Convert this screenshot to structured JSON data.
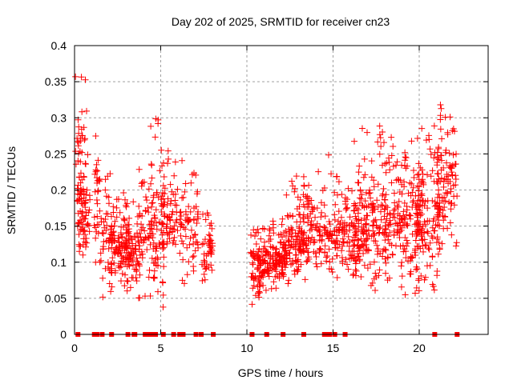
{
  "chart_data": {
    "type": "scatter",
    "title": "Day 202 of 2025, SRMTID for receiver cn23",
    "xlabel": "GPS time / hours",
    "ylabel": "SRMTID / TECUs",
    "xlim": [
      0,
      24
    ],
    "ylim": [
      0,
      0.4
    ],
    "xticks": [
      0,
      5,
      10,
      15,
      20
    ],
    "xtick_labels": [
      "0",
      "5",
      "10",
      "15",
      "20"
    ],
    "yticks": [
      0,
      0.05,
      0.1,
      0.15,
      0.2,
      0.25,
      0.3,
      0.35,
      0.4
    ],
    "ytick_labels": [
      "0",
      "0.05",
      "0.1",
      "0.15",
      "0.2",
      "0.25",
      "0.3",
      "0.35",
      "0.4"
    ],
    "grid": true,
    "legend": "none",
    "marker": "plus",
    "color": "#ff0000",
    "zero_points_x": [
      0.2,
      1.15,
      1.3,
      1.6,
      2.15,
      3.1,
      3.45,
      3.5,
      4.1,
      4.25,
      4.5,
      4.7,
      5.15,
      5.75,
      6.1,
      6.3,
      7.05,
      7.35,
      8.05,
      10.3,
      11.15,
      12.1,
      13.3,
      14.5,
      14.7,
      14.8,
      15.1,
      15.7,
      20.9,
      22.2
    ],
    "clusters": [
      {
        "x": [
          0.05,
          0.7
        ],
        "y": [
          0.12,
          0.37
        ],
        "n": 70,
        "center": 0.22
      },
      {
        "x": [
          0.2,
          0.9
        ],
        "y": [
          0.1,
          0.26
        ],
        "n": 40,
        "center": 0.16
      },
      {
        "x": [
          1.1,
          1.5
        ],
        "y": [
          0.08,
          0.29
        ],
        "n": 30,
        "center": 0.2
      },
      {
        "x": [
          1.5,
          2.2
        ],
        "y": [
          0.05,
          0.24
        ],
        "n": 40,
        "center": 0.14
      },
      {
        "x": [
          2.0,
          3.2
        ],
        "y": [
          0.06,
          0.2
        ],
        "n": 120,
        "center": 0.12
      },
      {
        "x": [
          3.0,
          3.8
        ],
        "y": [
          0.05,
          0.19
        ],
        "n": 50,
        "center": 0.11
      },
      {
        "x": [
          3.6,
          4.6
        ],
        "y": [
          0.05,
          0.28
        ],
        "n": 60,
        "center": 0.15
      },
      {
        "x": [
          4.4,
          5.2
        ],
        "y": [
          0.03,
          0.3
        ],
        "n": 70,
        "center": 0.14
      },
      {
        "x": [
          5.0,
          6.0
        ],
        "y": [
          0.09,
          0.27
        ],
        "n": 70,
        "center": 0.16
      },
      {
        "x": [
          6.1,
          7.2
        ],
        "y": [
          0.07,
          0.25
        ],
        "n": 70,
        "center": 0.14
      },
      {
        "x": [
          7.4,
          8.0
        ],
        "y": [
          0.07,
          0.17
        ],
        "n": 45,
        "center": 0.11
      },
      {
        "x": [
          10.2,
          10.8
        ],
        "y": [
          0.03,
          0.15
        ],
        "n": 50,
        "center": 0.09
      },
      {
        "x": [
          10.7,
          12.3
        ],
        "y": [
          0.06,
          0.16
        ],
        "n": 160,
        "center": 0.1
      },
      {
        "x": [
          12.2,
          13.6
        ],
        "y": [
          0.07,
          0.22
        ],
        "n": 110,
        "center": 0.12
      },
      {
        "x": [
          13.0,
          14.0
        ],
        "y": [
          0.09,
          0.24
        ],
        "n": 60,
        "center": 0.15
      },
      {
        "x": [
          14.0,
          14.9
        ],
        "y": [
          0.08,
          0.25
        ],
        "n": 60,
        "center": 0.14
      },
      {
        "x": [
          14.9,
          16.5
        ],
        "y": [
          0.07,
          0.22
        ],
        "n": 110,
        "center": 0.14
      },
      {
        "x": [
          16.2,
          18.2
        ],
        "y": [
          0.06,
          0.29
        ],
        "n": 180,
        "center": 0.15
      },
      {
        "x": [
          18.0,
          20.0
        ],
        "y": [
          0.05,
          0.28
        ],
        "n": 170,
        "center": 0.15
      },
      {
        "x": [
          19.8,
          21.2
        ],
        "y": [
          0.06,
          0.29
        ],
        "n": 130,
        "center": 0.16
      },
      {
        "x": [
          21.0,
          22.2
        ],
        "y": [
          0.12,
          0.32
        ],
        "n": 100,
        "center": 0.21
      }
    ]
  }
}
